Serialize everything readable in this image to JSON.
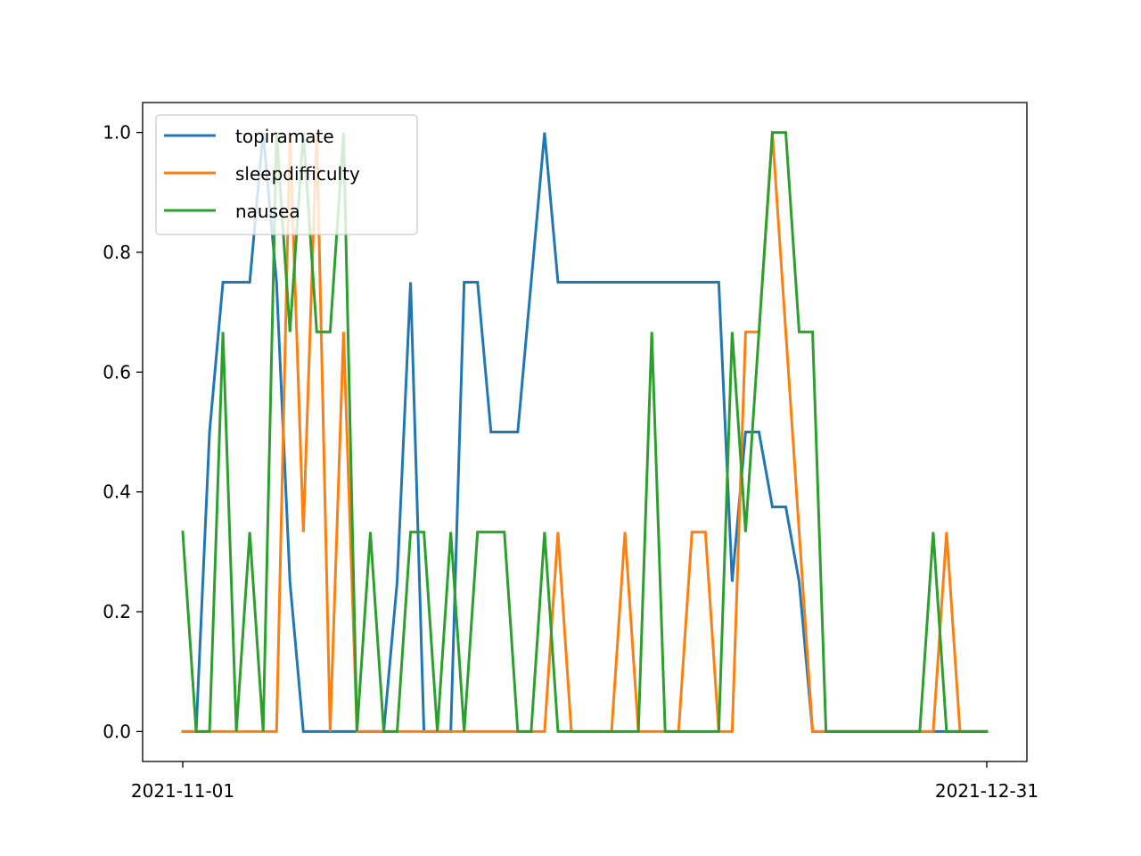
{
  "chart_data": {
    "type": "line",
    "x": [
      "2021-11-01",
      "2021-11-02",
      "2021-11-03",
      "2021-11-04",
      "2021-11-05",
      "2021-11-06",
      "2021-11-07",
      "2021-11-08",
      "2021-11-09",
      "2021-11-10",
      "2021-11-11",
      "2021-11-12",
      "2021-11-13",
      "2021-11-14",
      "2021-11-15",
      "2021-11-16",
      "2021-11-17",
      "2021-11-18",
      "2021-11-19",
      "2021-11-20",
      "2021-11-21",
      "2021-11-22",
      "2021-11-23",
      "2021-11-24",
      "2021-11-25",
      "2021-11-26",
      "2021-11-27",
      "2021-11-28",
      "2021-11-29",
      "2021-11-30",
      "2021-12-01",
      "2021-12-02",
      "2021-12-03",
      "2021-12-04",
      "2021-12-05",
      "2021-12-06",
      "2021-12-07",
      "2021-12-08",
      "2021-12-09",
      "2021-12-10",
      "2021-12-11",
      "2021-12-12",
      "2021-12-13",
      "2021-12-14",
      "2021-12-15",
      "2021-12-16",
      "2021-12-17",
      "2021-12-18",
      "2021-12-19",
      "2021-12-20",
      "2021-12-21",
      "2021-12-22",
      "2021-12-23",
      "2021-12-24",
      "2021-12-25",
      "2021-12-26",
      "2021-12-27",
      "2021-12-28",
      "2021-12-29",
      "2021-12-30",
      "2021-12-31"
    ],
    "series": [
      {
        "name": "topiramate",
        "color": "#1f77b4",
        "values": [
          0,
          0,
          0.5,
          0.75,
          0.75,
          0.75,
          1.0,
          0.75,
          0.25,
          0,
          0,
          0,
          0,
          0,
          0,
          0,
          0.25,
          0.75,
          0,
          0,
          0,
          0.75,
          0.75,
          0.5,
          0.5,
          0.5,
          0.75,
          1.0,
          0.75,
          0.75,
          0.75,
          0.75,
          0.75,
          0.75,
          0.75,
          0.75,
          0.75,
          0.75,
          0.75,
          0.75,
          0.75,
          0.25,
          0.5,
          0.5,
          0.375,
          0.375,
          0.25,
          0,
          0,
          0,
          0,
          0,
          0,
          0,
          0,
          0,
          0,
          0,
          0,
          0,
          0
        ]
      },
      {
        "name": "sleepdifficulty",
        "color": "#ff7f0e",
        "values": [
          0,
          0,
          0,
          0,
          0,
          0,
          0,
          0,
          1.0,
          0.333,
          1.0,
          0,
          0.667,
          0,
          0,
          0,
          0,
          0,
          0,
          0,
          0,
          0,
          0,
          0,
          0,
          0,
          0,
          0,
          0.333,
          0,
          0,
          0,
          0,
          0.333,
          0,
          0,
          0,
          0,
          0.333,
          0.333,
          0,
          0,
          0.667,
          0.667,
          1.0,
          0.667,
          0.333,
          0,
          0,
          0,
          0,
          0,
          0,
          0,
          0,
          0,
          0,
          0.333,
          0,
          0,
          0
        ]
      },
      {
        "name": "nausea",
        "color": "#2ca02c",
        "values": [
          0.333,
          0,
          0,
          0.667,
          0,
          0.333,
          0,
          1.0,
          0.667,
          1.0,
          0.667,
          0.667,
          1.0,
          0,
          0.333,
          0,
          0,
          0.333,
          0.333,
          0,
          0.333,
          0,
          0.333,
          0.333,
          0.333,
          0,
          0,
          0.333,
          0,
          0,
          0,
          0,
          0,
          0,
          0,
          0.667,
          0,
          0,
          0,
          0,
          0,
          0.667,
          0.333,
          0.667,
          1.0,
          1.0,
          0.667,
          0.667,
          0,
          0,
          0,
          0,
          0,
          0,
          0,
          0,
          0.333,
          0,
          0,
          0,
          0
        ]
      }
    ],
    "xticks": [
      "2021-11-01",
      "2021-12-31"
    ],
    "yticks": [
      "0.0",
      "0.2",
      "0.4",
      "0.6",
      "0.8",
      "1.0"
    ],
    "ylim": [
      -0.05,
      1.05
    ],
    "legend_position": "upper-left",
    "grid": false,
    "title": "",
    "xlabel": "",
    "ylabel": ""
  }
}
